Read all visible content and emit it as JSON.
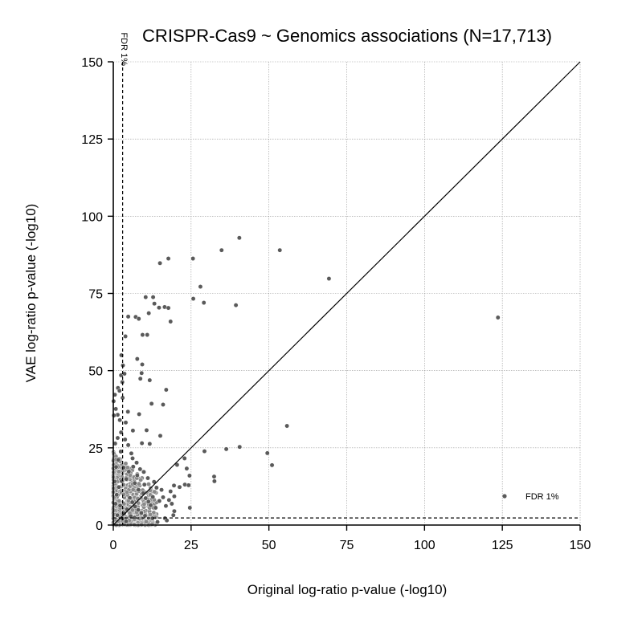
{
  "chart_data": {
    "type": "scatter",
    "title": "CRISPR-Cas9 ~ Genomics associations (N=17,713)",
    "xlabel": "Original log-ratio p-value (-log10)",
    "ylabel": "VAE log-ratio p-value (-log10)",
    "xlim": [
      0,
      150
    ],
    "ylim": [
      0,
      150
    ],
    "xticks": [
      "0",
      "25",
      "50",
      "75",
      "100",
      "125",
      "150"
    ],
    "yticks": [
      "0",
      "25",
      "50",
      "75",
      "100",
      "125",
      "150"
    ],
    "grid": true,
    "legend": {
      "placement": "bottom-right",
      "label": "FDR 1%"
    },
    "threshold": {
      "label": "FDR 1%",
      "x": 3.0,
      "y": 2.3
    },
    "diagonal": true,
    "point_color": "#5a5a5a",
    "points": [
      [
        40.5,
        93
      ],
      [
        34.8,
        89
      ],
      [
        53.5,
        89
      ],
      [
        25.6,
        86.3
      ],
      [
        17.7,
        86.3
      ],
      [
        15.0,
        84.8
      ],
      [
        69.3,
        79.8
      ],
      [
        28.0,
        77.2
      ],
      [
        25.7,
        73.3
      ],
      [
        29.1,
        72.0
      ],
      [
        39.4,
        71.2
      ],
      [
        10.4,
        73.8
      ],
      [
        12.8,
        73.8
      ],
      [
        13.2,
        71.7
      ],
      [
        14.7,
        70.4
      ],
      [
        16.5,
        70.6
      ],
      [
        17.7,
        70.3
      ],
      [
        11.4,
        68.6
      ],
      [
        4.8,
        67.5
      ],
      [
        7.2,
        67.4
      ],
      [
        8.2,
        66.8
      ],
      [
        18.4,
        65.9
      ],
      [
        123.6,
        67.2
      ],
      [
        9.4,
        61.6
      ],
      [
        10.9,
        61.6
      ],
      [
        3.9,
        61.1
      ],
      [
        2.6,
        55.0
      ],
      [
        7.7,
        53.8
      ],
      [
        9.3,
        52.0
      ],
      [
        3.1,
        51.7
      ],
      [
        9.1,
        49.2
      ],
      [
        2.5,
        48.5
      ],
      [
        3.6,
        49.0
      ],
      [
        8.7,
        47.4
      ],
      [
        2.9,
        46.3
      ],
      [
        11.7,
        46.9
      ],
      [
        1.5,
        44.4
      ],
      [
        2.0,
        43.5
      ],
      [
        17.0,
        43.8
      ],
      [
        0.5,
        42.2
      ],
      [
        3.0,
        41.2
      ],
      [
        0.1,
        40.1
      ],
      [
        12.3,
        39.3
      ],
      [
        16.0,
        39.0
      ],
      [
        0.8,
        37.6
      ],
      [
        4.7,
        36.7
      ],
      [
        1.4,
        35.7
      ],
      [
        8.3,
        35.9
      ],
      [
        0.2,
        35.5
      ],
      [
        2.1,
        34.0
      ],
      [
        4.0,
        33.2
      ],
      [
        55.8,
        32.1
      ],
      [
        6.3,
        30.6
      ],
      [
        10.7,
        30.7
      ],
      [
        2.5,
        30.0
      ],
      [
        15.1,
        28.9
      ],
      [
        1.4,
        28.2
      ],
      [
        3.8,
        27.7
      ],
      [
        9.2,
        26.5
      ],
      [
        11.7,
        26.3
      ],
      [
        40.6,
        25.3
      ],
      [
        36.3,
        24.6
      ],
      [
        29.3,
        23.9
      ],
      [
        49.5,
        23.3
      ],
      [
        51.0,
        19.4
      ],
      [
        22.9,
        21.6
      ],
      [
        20.5,
        19.5
      ],
      [
        23.6,
        18.3
      ],
      [
        24.5,
        16.0
      ],
      [
        32.4,
        15.7
      ],
      [
        32.5,
        14.2
      ],
      [
        23.0,
        13.1
      ],
      [
        24.2,
        12.9
      ],
      [
        19.5,
        12.8
      ],
      [
        21.3,
        12.3
      ],
      [
        13.9,
        12.1
      ],
      [
        18.4,
        10.9
      ],
      [
        19.6,
        9.3
      ],
      [
        16.0,
        9.0
      ],
      [
        24.6,
        5.6
      ],
      [
        19.6,
        4.5
      ],
      [
        19.3,
        3.2
      ],
      [
        16.6,
        2.2
      ],
      [
        17.2,
        1.5
      ],
      [
        14.2,
        1.0
      ],
      [
        12.6,
        2.2
      ],
      [
        6.2,
        21.6
      ],
      [
        7.5,
        20.2
      ],
      [
        8.6,
        18.1
      ],
      [
        5.0,
        17.3
      ],
      [
        4.2,
        14.9
      ],
      [
        6.9,
        13.6
      ],
      [
        8.1,
        11.4
      ],
      [
        9.6,
        10.3
      ],
      [
        10.4,
        8.7
      ],
      [
        11.3,
        7.6
      ],
      [
        12.0,
        6.4
      ],
      [
        5.3,
        8.8
      ],
      [
        6.1,
        7.4
      ],
      [
        7.0,
        6.0
      ],
      [
        8.0,
        4.9
      ],
      [
        9.0,
        3.9
      ],
      [
        10.2,
        3.0
      ],
      [
        4.4,
        5.1
      ],
      [
        3.5,
        3.8
      ],
      [
        5.6,
        2.9
      ],
      [
        6.8,
        2.4
      ],
      [
        2.2,
        6.3
      ],
      [
        1.1,
        9.8
      ],
      [
        1.8,
        12.3
      ],
      [
        2.7,
        14.2
      ],
      [
        3.3,
        18.6
      ],
      [
        1.6,
        21.1
      ],
      [
        2.4,
        23.8
      ],
      [
        0.6,
        26.4
      ],
      [
        0.9,
        18.8
      ],
      [
        0.4,
        14.1
      ],
      [
        0.7,
        6.9
      ],
      [
        1.3,
        3.2
      ],
      [
        2.9,
        2.0
      ],
      [
        4.1,
        1.2
      ],
      [
        11.1,
        15.2
      ],
      [
        12.7,
        9.1
      ],
      [
        13.6,
        5.6
      ],
      [
        14.8,
        7.8
      ],
      [
        15.5,
        11.4
      ],
      [
        10.0,
        13.1
      ],
      [
        7.7,
        16.1
      ],
      [
        6.4,
        18.9
      ],
      [
        5.8,
        23.2
      ],
      [
        4.8,
        25.9
      ],
      [
        9.8,
        17.2
      ],
      [
        13.1,
        14.0
      ],
      [
        16.9,
        6.2
      ],
      [
        17.9,
        8.1
      ],
      [
        18.8,
        6.9
      ]
    ],
    "dense_cluster": {
      "x_max": 14,
      "y_max": 24,
      "count": 520,
      "color": "#8a8a8a"
    }
  }
}
